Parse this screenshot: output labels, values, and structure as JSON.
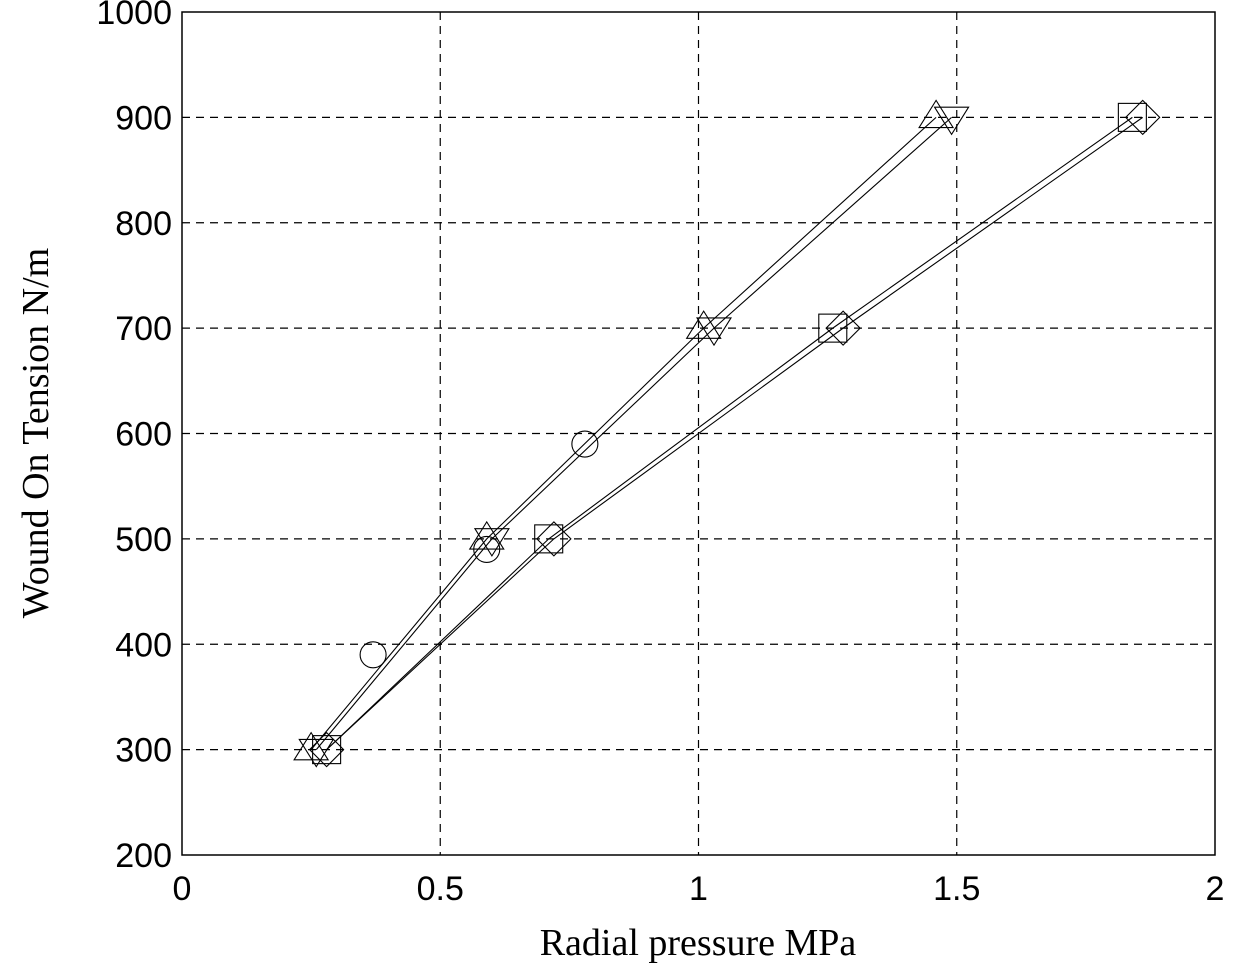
{
  "chart_data": {
    "type": "line",
    "title": "",
    "xlabel": "Radial pressure MPa",
    "ylabel": "Wound On Tension N/m",
    "xlim": [
      0,
      2
    ],
    "ylim": [
      200,
      1000
    ],
    "xticks": [
      0,
      0.5,
      1,
      1.5,
      2
    ],
    "xtick_labels": [
      "0",
      "0.5",
      "1",
      "1.5",
      "2"
    ],
    "yticks": [
      200,
      300,
      400,
      500,
      600,
      700,
      800,
      900,
      1000
    ],
    "ytick_labels": [
      "200",
      "300",
      "400",
      "500",
      "600",
      "700",
      "800",
      "900",
      "1000"
    ],
    "grid": true,
    "grid_style": "dashed",
    "legend": false,
    "series": [
      {
        "marker": "triangle-up",
        "line": true,
        "color": "#000000",
        "x": [
          0.25,
          0.59,
          1.01,
          1.46
        ],
        "y": [
          300,
          500,
          700,
          900
        ]
      },
      {
        "marker": "triangle-down",
        "line": true,
        "color": "#000000",
        "x": [
          0.26,
          0.6,
          1.03,
          1.49
        ],
        "y": [
          300,
          500,
          700,
          900
        ]
      },
      {
        "marker": "square",
        "line": true,
        "color": "#000000",
        "x": [
          0.28,
          0.71,
          1.26,
          1.84
        ],
        "y": [
          300,
          500,
          700,
          900
        ]
      },
      {
        "marker": "diamond",
        "line": true,
        "color": "#000000",
        "x": [
          0.28,
          0.72,
          1.28,
          1.86
        ],
        "y": [
          300,
          500,
          700,
          900
        ]
      },
      {
        "marker": "circle",
        "line": false,
        "color": "#000000",
        "x": [
          0.37,
          0.59,
          0.78
        ],
        "y": [
          390,
          490,
          590
        ]
      }
    ]
  }
}
